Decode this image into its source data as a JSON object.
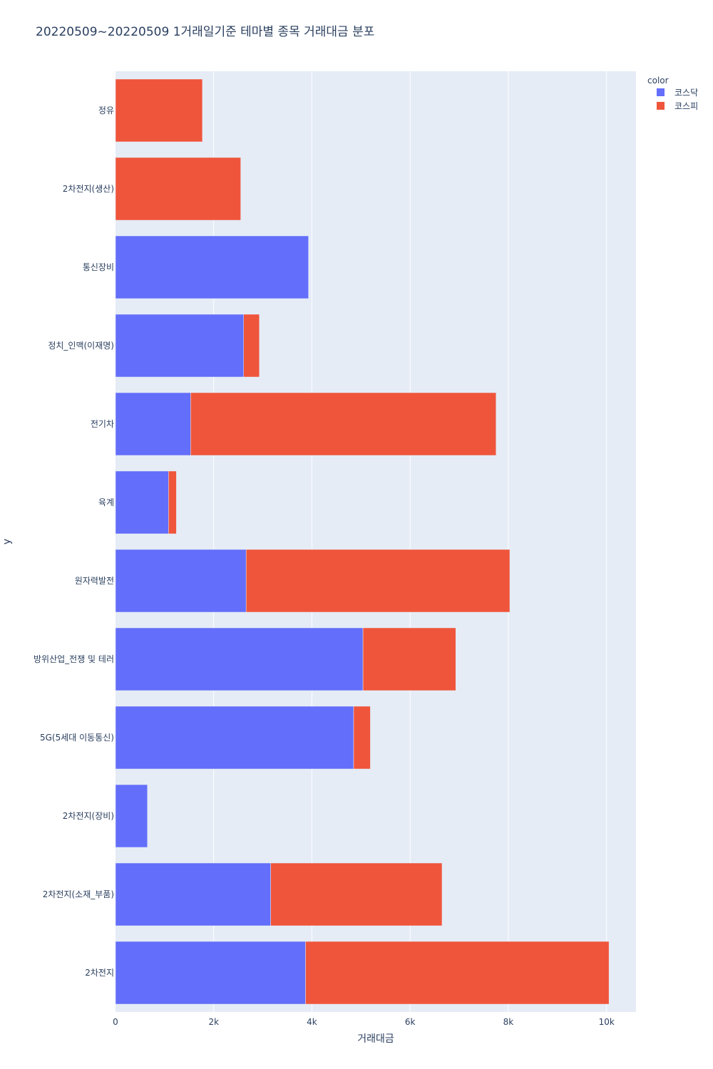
{
  "chart_data": {
    "type": "bar",
    "orientation": "horizontal",
    "barmode": "stack",
    "title": "20220509~20220509 1거래일기준 테마별 종목 거래대금 분포",
    "xlabel": "거래대금",
    "ylabel": "y",
    "xlim": [
      0,
      10600
    ],
    "x_ticks": [
      0,
      2000,
      4000,
      6000,
      8000,
      10000
    ],
    "x_tick_labels": [
      "0",
      "2k",
      "4k",
      "6k",
      "8k",
      "10k"
    ],
    "categories": [
      "정유",
      "2차전지(생산)",
      "통신장비",
      "정치_인맥(이재명)",
      "전기차",
      "육계",
      "원자력발전",
      "방위산업_전쟁 및 테러",
      "5G(5세대 이동통신)",
      "2차전지(장비)",
      "2차전지(소재_부품)",
      "2차전지"
    ],
    "series": [
      {
        "name": "코스닥",
        "color": "#636efa",
        "values": [
          0,
          0,
          3930,
          2610,
          1530,
          1080,
          2660,
          5040,
          4850,
          650,
          3160,
          3870
        ]
      },
      {
        "name": "코스피",
        "color": "#ef553b",
        "values": [
          1770,
          2550,
          0,
          320,
          6220,
          160,
          5370,
          1890,
          340,
          0,
          3490,
          6180
        ]
      }
    ],
    "legend": {
      "title": "color",
      "position": "top-right"
    },
    "grid": true
  }
}
